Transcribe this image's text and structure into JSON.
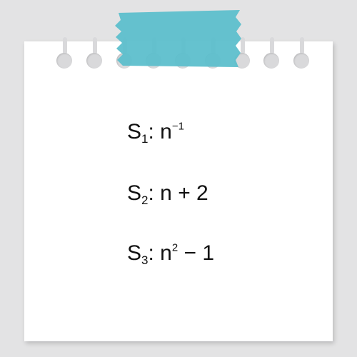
{
  "statements": [
    {
      "label": "S",
      "index": "1",
      "separator": ":",
      "base": "n",
      "exponent": "−1",
      "rest": ""
    },
    {
      "label": "S",
      "index": "2",
      "separator": ":",
      "base": "n",
      "exponent": "",
      "rest": "+ 2"
    },
    {
      "label": "S",
      "index": "3",
      "separator": ":",
      "base": "n",
      "exponent": "2",
      "rest": "− 1"
    }
  ],
  "colors": {
    "background": "#e3e3e4",
    "paper": "#ffffff",
    "tape": "#5dbfcc",
    "holes": "#d9d9db",
    "text": "#111111"
  },
  "icons": {
    "tape": "tape-icon",
    "binder_hole": "binder-hole-icon"
  }
}
